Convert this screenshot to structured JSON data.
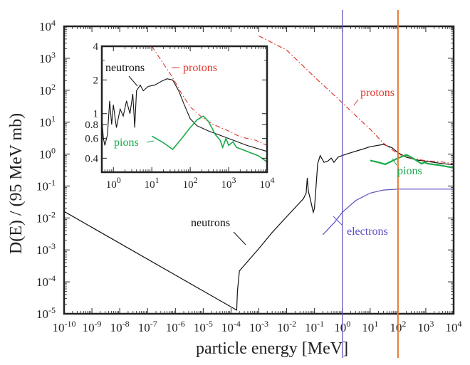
{
  "chart_data": {
    "type": "line",
    "xlabel": "particle energy [MeV]",
    "ylabel": "D(E) / (95 MeV mb)",
    "xscale": "log",
    "yscale": "log",
    "xlim": [
      1e-10,
      10000.0
    ],
    "ylim": [
      1e-05,
      10000.0
    ],
    "grid": false,
    "legend": "none",
    "x_ticks": [
      {
        "base": "10",
        "exp": "-10"
      },
      {
        "base": "10",
        "exp": "-9"
      },
      {
        "base": "10",
        "exp": "-8"
      },
      {
        "base": "10",
        "exp": "-7"
      },
      {
        "base": "10",
        "exp": "-6"
      },
      {
        "base": "10",
        "exp": "-5"
      },
      {
        "base": "10",
        "exp": "-4"
      },
      {
        "base": "10",
        "exp": "-3"
      },
      {
        "base": "10",
        "exp": "-2"
      },
      {
        "base": "10",
        "exp": "-1"
      },
      {
        "base": "10",
        "exp": "0"
      },
      {
        "base": "10",
        "exp": "1"
      },
      {
        "base": "10",
        "exp": "2"
      },
      {
        "base": "10",
        "exp": "3"
      },
      {
        "base": "10",
        "exp": "4"
      }
    ],
    "y_ticks": [
      {
        "base": "10",
        "exp": "-5"
      },
      {
        "base": "10",
        "exp": "-4"
      },
      {
        "base": "10",
        "exp": "-3"
      },
      {
        "base": "10",
        "exp": "-2"
      },
      {
        "base": "10",
        "exp": "-1"
      },
      {
        "base": "10",
        "exp": "0"
      },
      {
        "base": "10",
        "exp": "1"
      },
      {
        "base": "10",
        "exp": "2"
      },
      {
        "base": "10",
        "exp": "3"
      },
      {
        "base": "10",
        "exp": "4"
      }
    ],
    "vertical_lines": [
      {
        "name": "marker-1MeV",
        "x": 1,
        "color": "#5a4fc0"
      },
      {
        "name": "marker-100MeV",
        "x": 100,
        "color": "#e8772e"
      }
    ],
    "series": [
      {
        "name": "neutrons",
        "color": "#111111",
        "style": "solid",
        "points": [
          [
            1e-10,
            0.016
          ],
          [
            0.00016,
            1.3e-05
          ],
          [
            0.00017,
            5e-05
          ],
          [
            0.0002,
            0.00022
          ],
          [
            0.001,
            0.0011
          ],
          [
            0.003,
            0.0035
          ],
          [
            0.01,
            0.011
          ],
          [
            0.04,
            0.04
          ],
          [
            0.05,
            0.06
          ],
          [
            0.055,
            0.18
          ],
          [
            0.06,
            0.07
          ],
          [
            0.07,
            0.04
          ],
          [
            0.09,
            0.015
          ],
          [
            0.1,
            0.02
          ],
          [
            0.13,
            0.5
          ],
          [
            0.16,
            0.9
          ],
          [
            0.22,
            0.55
          ],
          [
            0.3,
            0.6
          ],
          [
            0.4,
            0.75
          ],
          [
            0.5,
            0.55
          ],
          [
            0.7,
            0.8
          ],
          [
            1,
            0.9
          ],
          [
            2,
            1.1
          ],
          [
            5,
            1.4
          ],
          [
            10,
            1.7
          ],
          [
            30,
            2.0
          ],
          [
            60,
            1.6
          ],
          [
            100,
            1.1
          ],
          [
            200,
            0.8
          ],
          [
            500,
            0.65
          ],
          [
            1000,
            0.6
          ],
          [
            3000,
            0.52
          ],
          [
            10000,
            0.46
          ]
        ]
      },
      {
        "name": "protons",
        "color": "#e03a2f",
        "style": "dash-dot",
        "points": [
          [
            0.001,
            5000
          ],
          [
            0.01,
            1800
          ],
          [
            0.1,
            260
          ],
          [
            1,
            40
          ],
          [
            10,
            6
          ],
          [
            30,
            2.2
          ],
          [
            100,
            1.0
          ],
          [
            300,
            0.75
          ],
          [
            1000,
            0.62
          ],
          [
            3000,
            0.58
          ],
          [
            10000,
            0.5
          ]
        ]
      },
      {
        "name": "pions",
        "color": "#1aaa4a",
        "style": "solid",
        "points": [
          [
            10,
            0.63
          ],
          [
            20,
            0.55
          ],
          [
            35,
            0.48
          ],
          [
            60,
            0.6
          ],
          [
            100,
            0.75
          ],
          [
            200,
            0.95
          ],
          [
            300,
            0.8
          ],
          [
            500,
            0.6
          ],
          [
            700,
            0.5
          ],
          [
            900,
            0.55
          ],
          [
            1200,
            0.5
          ],
          [
            3000,
            0.45
          ],
          [
            10000,
            0.37
          ]
        ]
      },
      {
        "name": "electrons",
        "color": "#5a4fc0",
        "style": "solid",
        "points": [
          [
            0.2,
            0.003
          ],
          [
            0.5,
            0.007
          ],
          [
            1,
            0.015
          ],
          [
            3,
            0.035
          ],
          [
            10,
            0.06
          ],
          [
            30,
            0.075
          ],
          [
            100,
            0.08
          ],
          [
            1000,
            0.08
          ],
          [
            10000,
            0.08
          ]
        ]
      }
    ],
    "annotations": [
      {
        "text": "neutrons",
        "color": "#111111"
      },
      {
        "text": "protons",
        "color": "#e03a2f"
      },
      {
        "text": "pions",
        "color": "#1aaa4a"
      },
      {
        "text": "electrons",
        "color": "#5a4fc0"
      }
    ],
    "inset": {
      "xscale": "log",
      "yscale": "log",
      "xlim": [
        0.5,
        10000.0
      ],
      "ylim": [
        0.3,
        4
      ],
      "x_ticks": [
        {
          "base": "10",
          "exp": "0"
        },
        {
          "base": "10",
          "exp": "1"
        },
        {
          "base": "10",
          "exp": "2"
        },
        {
          "base": "10",
          "exp": "3"
        },
        {
          "base": "10",
          "exp": "4"
        }
      ],
      "y_ticks": [
        "0.4",
        "0.6",
        "0.8",
        "1",
        "2",
        "4"
      ],
      "annotations": [
        {
          "text": "neutrons",
          "color": "#111111"
        },
        {
          "text": "protons",
          "color": "#e03a2f"
        },
        {
          "text": "pions",
          "color": "#1aaa4a"
        }
      ],
      "series": [
        {
          "name": "neutrons",
          "color": "#111111",
          "style": "solid",
          "points": [
            [
              0.5,
              0.9
            ],
            [
              0.55,
              0.6
            ],
            [
              0.6,
              0.52
            ],
            [
              0.7,
              0.65
            ],
            [
              0.8,
              1.3
            ],
            [
              0.9,
              0.8
            ],
            [
              1.0,
              1.2
            ],
            [
              1.2,
              0.75
            ],
            [
              1.5,
              1.1
            ],
            [
              1.8,
              0.95
            ],
            [
              2.2,
              1.3
            ],
            [
              2.7,
              1.0
            ],
            [
              3.2,
              1.5
            ],
            [
              3.6,
              0.75
            ],
            [
              4,
              1.6
            ],
            [
              5,
              1.8
            ],
            [
              6,
              1.6
            ],
            [
              8,
              1.75
            ],
            [
              12,
              1.8
            ],
            [
              18,
              1.95
            ],
            [
              25,
              2.05
            ],
            [
              35,
              2.0
            ],
            [
              50,
              1.6
            ],
            [
              70,
              1.2
            ],
            [
              100,
              0.9
            ],
            [
              150,
              0.78
            ],
            [
              300,
              0.7
            ],
            [
              1000,
              0.6
            ],
            [
              3000,
              0.52
            ],
            [
              10000,
              0.46
            ]
          ]
        },
        {
          "name": "protons",
          "color": "#e03a2f",
          "style": "dash-dot",
          "points": [
            [
              10,
              4
            ],
            [
              20,
              2.8
            ],
            [
              35,
              2.1
            ],
            [
              60,
              1.5
            ],
            [
              100,
              1.15
            ],
            [
              200,
              0.93
            ],
            [
              400,
              0.8
            ],
            [
              1000,
              0.7
            ],
            [
              2000,
              0.62
            ],
            [
              5000,
              0.58
            ],
            [
              10000,
              0.52
            ]
          ]
        },
        {
          "name": "pions",
          "color": "#1aaa4a",
          "style": "solid",
          "points": [
            [
              10,
              0.63
            ],
            [
              20,
              0.55
            ],
            [
              35,
              0.48
            ],
            [
              60,
              0.6
            ],
            [
              100,
              0.75
            ],
            [
              150,
              0.88
            ],
            [
              220,
              0.95
            ],
            [
              300,
              0.85
            ],
            [
              450,
              0.65
            ],
            [
              600,
              0.58
            ],
            [
              700,
              0.5
            ],
            [
              850,
              0.6
            ],
            [
              1000,
              0.52
            ],
            [
              1300,
              0.56
            ],
            [
              1600,
              0.5
            ],
            [
              3000,
              0.46
            ],
            [
              6000,
              0.42
            ],
            [
              10000,
              0.37
            ]
          ]
        }
      ]
    }
  }
}
